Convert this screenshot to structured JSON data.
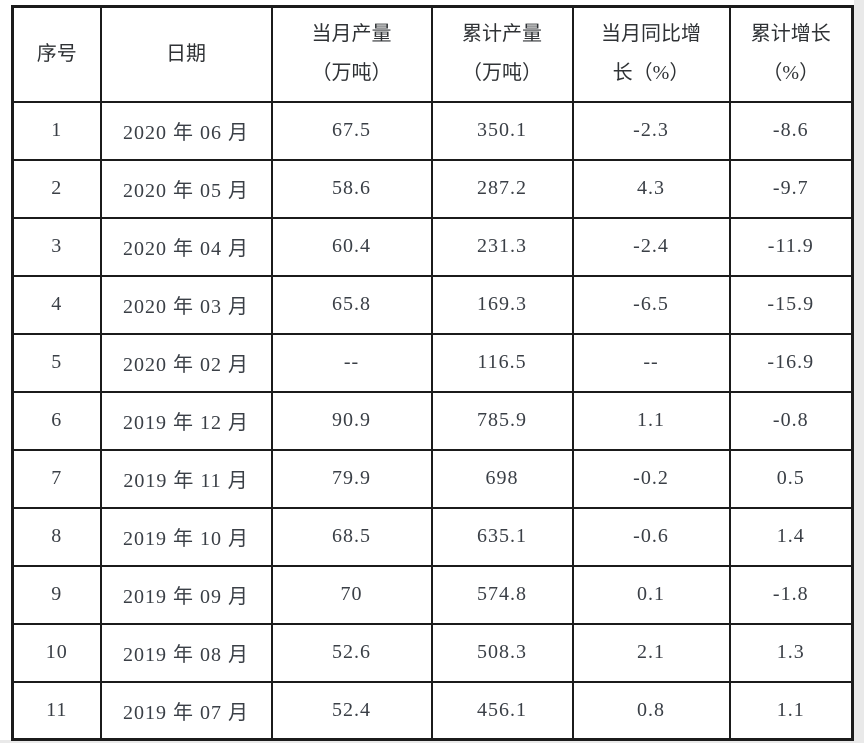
{
  "page": {
    "background": "#ffffff",
    "canvas_edge_color": "#e9e9e9",
    "border_color": "#1b1b1b",
    "header_text_color": "#2f3235",
    "cell_text_color": "#3a3f46"
  },
  "table": {
    "columns": [
      {
        "id": "index",
        "line1": "序号",
        "line2": ""
      },
      {
        "id": "date",
        "line1": "日期",
        "line2": ""
      },
      {
        "id": "monthly_output",
        "line1": "当月产量",
        "line2": "（万吨）"
      },
      {
        "id": "cumulative_output",
        "line1": "累计产量",
        "line2": "（万吨）"
      },
      {
        "id": "monthly_yoy_growth",
        "line1": "当月同比增",
        "line2": "长（%）"
      },
      {
        "id": "cumulative_growth",
        "line1": "累计增长",
        "line2": "（%）"
      }
    ],
    "rows": [
      [
        "1",
        "2020 年 06 月",
        "67.5",
        "350.1",
        "-2.3",
        "-8.6"
      ],
      [
        "2",
        "2020 年 05 月",
        "58.6",
        "287.2",
        "4.3",
        "-9.7"
      ],
      [
        "3",
        "2020 年 04 月",
        "60.4",
        "231.3",
        "-2.4",
        "-11.9"
      ],
      [
        "4",
        "2020 年 03 月",
        "65.8",
        "169.3",
        "-6.5",
        "-15.9"
      ],
      [
        "5",
        "2020 年 02 月",
        "--",
        "116.5",
        "--",
        "-16.9"
      ],
      [
        "6",
        "2019 年 12 月",
        "90.9",
        "785.9",
        "1.1",
        "-0.8"
      ],
      [
        "7",
        "2019 年 11 月",
        "79.9",
        "698",
        "-0.2",
        "0.5"
      ],
      [
        "8",
        "2019 年 10 月",
        "68.5",
        "635.1",
        "-0.6",
        "1.4"
      ],
      [
        "9",
        "2019 年 09 月",
        "70",
        "574.8",
        "0.1",
        "-1.8"
      ],
      [
        "10",
        "2019 年 08 月",
        "52.6",
        "508.3",
        "2.1",
        "1.3"
      ],
      [
        "11",
        "2019 年 07 月",
        "52.4",
        "456.1",
        "0.8",
        "1.1"
      ]
    ]
  }
}
